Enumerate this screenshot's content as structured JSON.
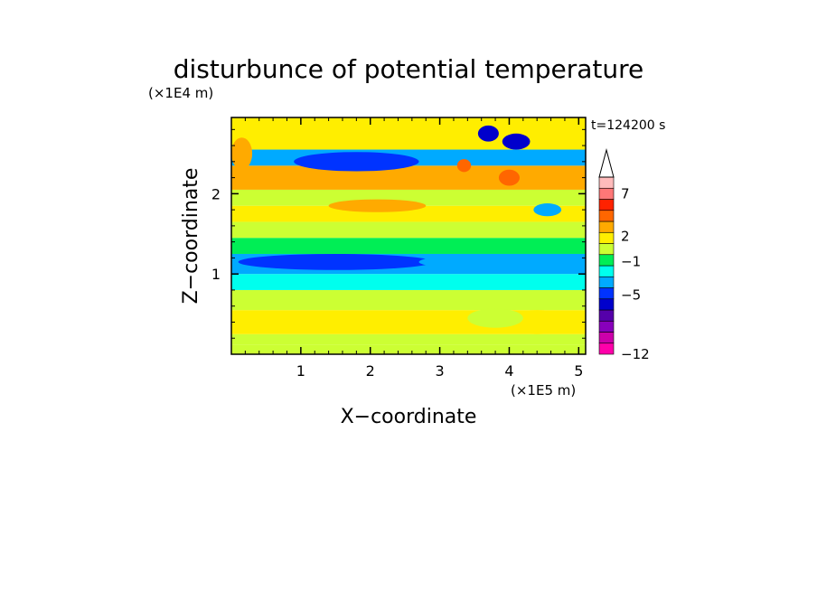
{
  "chart_data": {
    "type": "heatmap",
    "title": "disturbunce of potential temperature",
    "xlabel": "X−coordinate",
    "ylabel": "Z−coordinate",
    "x_unit": "(×1E5 m)",
    "y_unit": "(×1E4 m)",
    "time_label": "t=124200 s",
    "xlim": [
      0,
      5.1
    ],
    "ylim": [
      0,
      2.95
    ],
    "x_ticks": [
      1,
      2,
      3,
      4,
      5
    ],
    "y_ticks": [
      1,
      2
    ],
    "colorbar": {
      "ticks": [
        "7",
        "2",
        "−1",
        "−5",
        "−12"
      ],
      "tick_values": [
        7,
        2,
        -1,
        -5,
        -12
      ],
      "colors": [
        "#ff00aa",
        "#cc00aa",
        "#8800bb",
        "#5500aa",
        "#0000cc",
        "#0033ff",
        "#00aaff",
        "#00ffee",
        "#00ee55",
        "#ccff33",
        "#ffee00",
        "#ffaa00",
        "#ff6600",
        "#ff2200",
        "#ff7777",
        "#ffbbbb"
      ],
      "extend": "max"
    },
    "bands": [
      {
        "z0": 0.0,
        "z1": 0.12,
        "value": 0
      },
      {
        "z0": 0.12,
        "z1": 0.25,
        "value": 1
      },
      {
        "z0": 0.25,
        "z1": 0.55,
        "value": 2
      },
      {
        "z0": 0.55,
        "z1": 0.8,
        "value": 0
      },
      {
        "z0": 0.8,
        "z1": 1.0,
        "value": -2
      },
      {
        "z0": 1.0,
        "z1": 1.25,
        "value": -4
      },
      {
        "z0": 1.25,
        "z1": 1.45,
        "value": -1
      },
      {
        "z0": 1.45,
        "z1": 1.65,
        "value": 0
      },
      {
        "z0": 1.65,
        "z1": 1.85,
        "value": 2
      },
      {
        "z0": 1.85,
        "z1": 2.05,
        "value": 1
      },
      {
        "z0": 2.05,
        "z1": 2.35,
        "value": 3
      },
      {
        "z0": 2.35,
        "z1": 2.55,
        "value": -4
      },
      {
        "z0": 2.55,
        "z1": 2.95,
        "value": 2
      }
    ],
    "blobs": [
      {
        "x": 1.8,
        "z": 2.4,
        "rx": 0.9,
        "rz": 0.12,
        "value": -5
      },
      {
        "x": 2.1,
        "z": 1.85,
        "rx": 0.7,
        "rz": 0.08,
        "value": 4
      },
      {
        "x": 1.5,
        "z": 1.15,
        "rx": 1.4,
        "rz": 0.1,
        "value": -5
      },
      {
        "x": 3.5,
        "z": 1.15,
        "rx": 0.8,
        "rz": 0.08,
        "value": -4
      },
      {
        "x": 4.1,
        "z": 2.65,
        "rx": 0.2,
        "rz": 0.1,
        "value": -7
      },
      {
        "x": 3.7,
        "z": 2.75,
        "rx": 0.15,
        "rz": 0.1,
        "value": -7
      },
      {
        "x": 4.0,
        "z": 2.2,
        "rx": 0.15,
        "rz": 0.1,
        "value": 5
      },
      {
        "x": 3.35,
        "z": 2.35,
        "rx": 0.1,
        "rz": 0.08,
        "value": 5
      },
      {
        "x": 4.55,
        "z": 1.8,
        "rx": 0.2,
        "rz": 0.08,
        "value": -4
      },
      {
        "x": 0.15,
        "z": 2.5,
        "rx": 0.15,
        "rz": 0.2,
        "value": 4
      },
      {
        "x": 4.4,
        "z": 0.4,
        "rx": 0.5,
        "rz": 0.15,
        "value": 2
      },
      {
        "x": 3.8,
        "z": 0.45,
        "rx": 0.4,
        "rz": 0.12,
        "value": 1
      }
    ]
  }
}
